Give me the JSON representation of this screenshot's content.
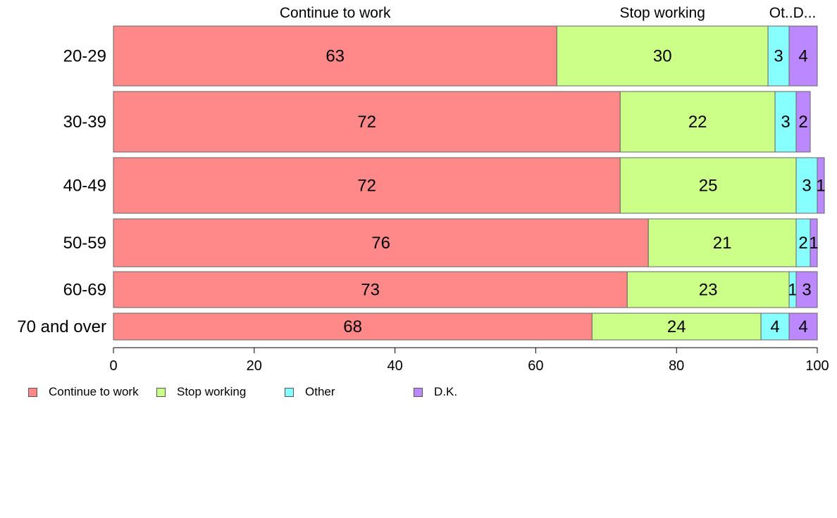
{
  "chart_data": {
    "type": "bar",
    "orientation": "horizontal",
    "stacked": true,
    "categories": [
      "20-29",
      "30-39",
      "40-49",
      "50-59",
      "60-69",
      "70 and over"
    ],
    "series": [
      {
        "name": "Continue to work",
        "values": [
          63,
          72,
          72,
          76,
          73,
          68
        ],
        "color": "#ff8888"
      },
      {
        "name": "Stop working",
        "values": [
          30,
          22,
          25,
          21,
          23,
          24
        ],
        "color": "#ccff88"
      },
      {
        "name": "Other",
        "values": [
          3,
          3,
          3,
          2,
          1,
          4
        ],
        "color": "#88ffff"
      },
      {
        "name": "D.K.",
        "values": [
          4,
          2,
          1,
          1,
          3,
          4
        ],
        "color": "#bb88ff"
      }
    ],
    "top_labels": [
      "Continue to work",
      "Stop working",
      "Ot..D..."
    ],
    "xlim": [
      0,
      100
    ],
    "xticks": [
      "0",
      "20",
      "40",
      "60",
      "80",
      "100"
    ],
    "grid": false,
    "legend_position": "bottom-left"
  }
}
